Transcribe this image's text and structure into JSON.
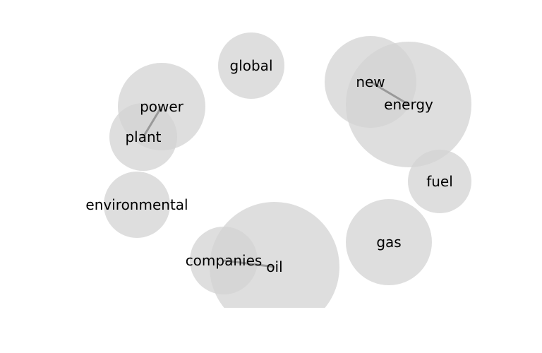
{
  "diagram": {
    "bubble_color": "#d3d3d3",
    "link_color": "#999999",
    "nodes": [
      {
        "id": "global",
        "label": "global"
      },
      {
        "id": "power",
        "label": "power"
      },
      {
        "id": "plant",
        "label": "plant"
      },
      {
        "id": "environmental",
        "label": "environmental"
      },
      {
        "id": "new",
        "label": "new"
      },
      {
        "id": "energy",
        "label": "energy"
      },
      {
        "id": "fuel",
        "label": "fuel"
      },
      {
        "id": "gas",
        "label": "gas"
      },
      {
        "id": "oil",
        "label": "oil"
      },
      {
        "id": "companies",
        "label": "companies"
      }
    ],
    "links": [
      {
        "source": "power",
        "target": "plant"
      },
      {
        "source": "new",
        "target": "energy"
      },
      {
        "source": "companies",
        "target": "oil"
      }
    ]
  }
}
